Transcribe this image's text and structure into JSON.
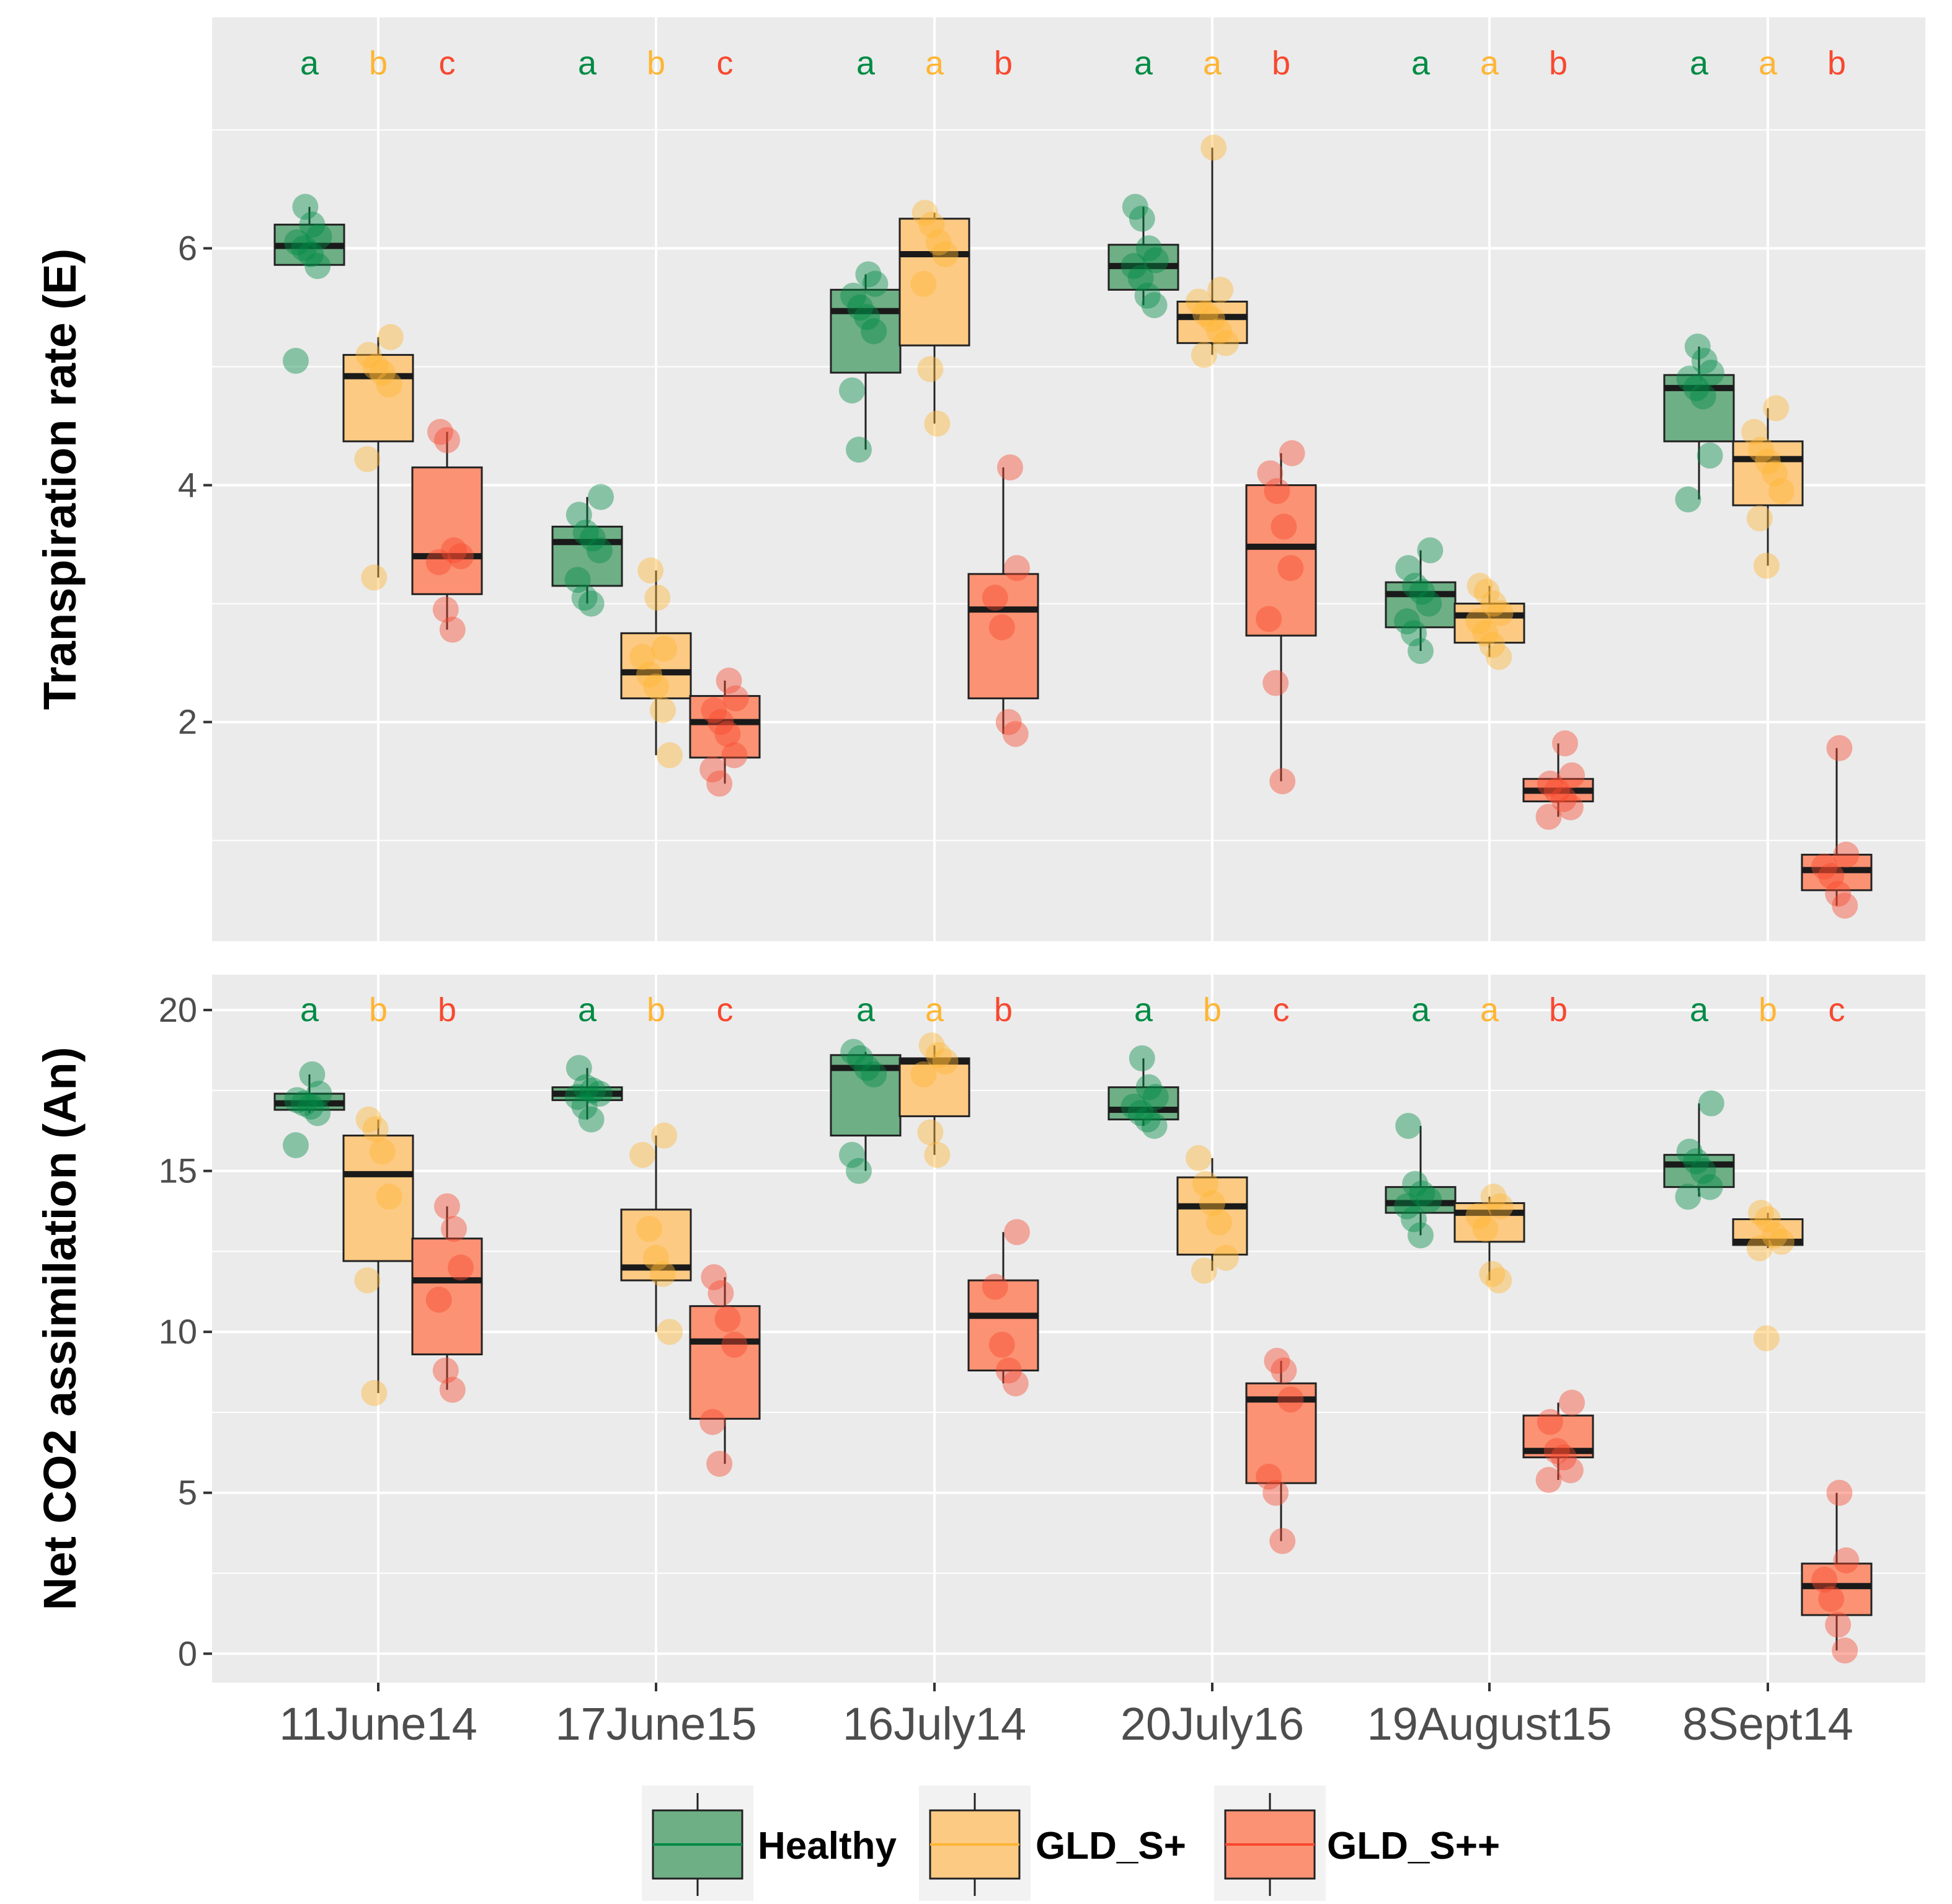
{
  "colors": {
    "panel_bg": "#EBEBEB",
    "grid": "#FFFFFF",
    "tick_text": "#4D4D4D",
    "healthy": "#008B45",
    "gld_s_plus": "#FFB533",
    "gld_s_plusplus": "#F8482E",
    "healthy_fill": "#6EAF85",
    "gld_s_plus_fill": "#FDCA84",
    "gld_s_plusplus_fill": "#FB9273"
  },
  "legend": {
    "items": [
      {
        "key": "healthy",
        "label": "Healthy"
      },
      {
        "key": "gld_s_plus",
        "label": "GLD_S+"
      },
      {
        "key": "gld_s_plusplus",
        "label": "GLD_S++"
      }
    ]
  },
  "chart_data": [
    {
      "type": "box",
      "panel": "top",
      "ylabel": "Transpiration rate (E)",
      "ylim": [
        0.15,
        7.95
      ],
      "yticks": [
        2,
        4,
        6
      ],
      "yminor": [
        1,
        3,
        5,
        7
      ],
      "categories": [
        "11June14",
        "17June15",
        "16July14",
        "20July16",
        "19August15",
        "8Sept14"
      ],
      "letters": [
        [
          "a",
          "b",
          "c"
        ],
        [
          "a",
          "b",
          "c"
        ],
        [
          "a",
          "a",
          "b"
        ],
        [
          "a",
          "a",
          "b"
        ],
        [
          "a",
          "a",
          "b"
        ],
        [
          "a",
          "a",
          "b"
        ]
      ],
      "series": [
        {
          "name": "Healthy",
          "boxes": [
            {
              "min": 5.85,
              "q1": 5.86,
              "median": 6.02,
              "q3": 6.2,
              "max": 6.35,
              "points": [
                5.05,
                5.85,
                5.95,
                6.0,
                6.05,
                6.1,
                6.2,
                6.35
              ]
            },
            {
              "min": 3.0,
              "q1": 3.15,
              "median": 3.52,
              "q3": 3.65,
              "max": 3.9,
              "points": [
                3.0,
                3.05,
                3.2,
                3.45,
                3.55,
                3.6,
                3.75,
                3.9
              ]
            },
            {
              "min": 4.3,
              "q1": 4.95,
              "median": 5.47,
              "q3": 5.65,
              "max": 5.78,
              "points": [
                4.3,
                4.8,
                5.3,
                5.42,
                5.5,
                5.6,
                5.7,
                5.78
              ]
            },
            {
              "min": 5.52,
              "q1": 5.65,
              "median": 5.85,
              "q3": 6.03,
              "max": 6.35,
              "points": [
                5.52,
                5.6,
                5.75,
                5.85,
                5.9,
                6.0,
                6.25,
                6.35
              ]
            },
            {
              "min": 2.6,
              "q1": 2.8,
              "median": 3.08,
              "q3": 3.18,
              "max": 3.45,
              "points": [
                2.6,
                2.75,
                2.85,
                3.0,
                3.1,
                3.15,
                3.3,
                3.45
              ]
            },
            {
              "min": 3.88,
              "q1": 4.37,
              "median": 4.82,
              "q3": 4.93,
              "max": 5.17,
              "points": [
                3.88,
                4.25,
                4.75,
                4.82,
                4.9,
                4.95,
                5.05,
                5.17
              ]
            }
          ]
        },
        {
          "name": "GLD_S+",
          "boxes": [
            {
              "min": 3.22,
              "q1": 4.37,
              "median": 4.92,
              "q3": 5.1,
              "max": 5.25,
              "points": [
                3.22,
                4.22,
                4.85,
                4.95,
                5.0,
                5.1,
                5.25
              ]
            },
            {
              "min": 1.72,
              "q1": 2.2,
              "median": 2.42,
              "q3": 2.75,
              "max": 3.28,
              "points": [
                1.72,
                2.1,
                2.3,
                2.4,
                2.55,
                2.62,
                3.05,
                3.28
              ]
            },
            {
              "min": 4.52,
              "q1": 5.18,
              "median": 5.95,
              "q3": 6.25,
              "max": 6.3,
              "points": [
                4.52,
                4.98,
                5.7,
                5.95,
                6.05,
                6.2,
                6.3
              ]
            },
            {
              "min": 5.1,
              "q1": 5.2,
              "median": 5.42,
              "q3": 5.55,
              "max": 6.85,
              "points": [
                5.1,
                5.2,
                5.3,
                5.4,
                5.45,
                5.55,
                5.65,
                6.85
              ]
            },
            {
              "min": 2.55,
              "q1": 2.67,
              "median": 2.9,
              "q3": 3.0,
              "max": 3.15,
              "points": [
                2.55,
                2.65,
                2.75,
                2.85,
                2.92,
                3.0,
                3.1,
                3.15
              ]
            },
            {
              "min": 3.32,
              "q1": 3.83,
              "median": 4.22,
              "q3": 4.37,
              "max": 4.65,
              "points": [
                3.32,
                3.72,
                3.95,
                4.1,
                4.2,
                4.3,
                4.45,
                4.65
              ]
            }
          ]
        },
        {
          "name": "GLD_S++",
          "boxes": [
            {
              "min": 2.78,
              "q1": 3.08,
              "median": 3.4,
              "q3": 4.15,
              "max": 4.45,
              "points": [
                2.78,
                2.95,
                3.35,
                3.4,
                3.45,
                4.38,
                4.45
              ]
            },
            {
              "min": 1.48,
              "q1": 1.7,
              "median": 2.0,
              "q3": 2.22,
              "max": 2.35,
              "points": [
                1.48,
                1.6,
                1.72,
                1.9,
                2.0,
                2.1,
                2.2,
                2.35
              ]
            },
            {
              "min": 1.9,
              "q1": 2.2,
              "median": 2.95,
              "q3": 3.25,
              "max": 4.15,
              "points": [
                1.9,
                2.0,
                2.8,
                3.05,
                3.3,
                4.15
              ]
            },
            {
              "min": 1.5,
              "q1": 2.73,
              "median": 3.48,
              "q3": 4.0,
              "max": 4.27,
              "points": [
                1.5,
                2.33,
                2.87,
                3.3,
                3.65,
                3.95,
                4.1,
                4.27
              ]
            },
            {
              "min": 1.2,
              "q1": 1.33,
              "median": 1.42,
              "q3": 1.52,
              "max": 1.82,
              "points": [
                1.2,
                1.28,
                1.35,
                1.42,
                1.48,
                1.55,
                1.82
              ]
            },
            {
              "min": 0.45,
              "q1": 0.58,
              "median": 0.75,
              "q3": 0.88,
              "max": 1.78,
              "points": [
                0.45,
                0.55,
                0.7,
                0.78,
                0.88,
                1.78
              ]
            }
          ]
        }
      ]
    },
    {
      "type": "box",
      "panel": "bottom",
      "ylabel": "Net CO2 assimilation (An)",
      "xlabel": "",
      "ylim": [
        -0.9,
        21.1
      ],
      "yticks": [
        0,
        5,
        10,
        15,
        20
      ],
      "yminor": [
        2.5,
        7.5,
        12.5,
        17.5
      ],
      "categories": [
        "11June14",
        "17June15",
        "16July14",
        "20July16",
        "19August15",
        "8Sept14"
      ],
      "letters": [
        [
          "a",
          "b",
          "b"
        ],
        [
          "a",
          "b",
          "c"
        ],
        [
          "a",
          "a",
          "b"
        ],
        [
          "a",
          "b",
          "c"
        ],
        [
          "a",
          "a",
          "b"
        ],
        [
          "a",
          "b",
          "c"
        ]
      ],
      "series": [
        {
          "name": "Healthy",
          "boxes": [
            {
              "min": 16.8,
              "q1": 16.9,
              "median": 17.1,
              "q3": 17.4,
              "max": 18.0,
              "points": [
                15.8,
                16.8,
                17.0,
                17.1,
                17.2,
                17.4,
                18.0
              ]
            },
            {
              "min": 16.6,
              "q1": 17.2,
              "median": 17.4,
              "q3": 17.6,
              "max": 18.2,
              "points": [
                16.6,
                17.0,
                17.3,
                17.4,
                17.5,
                17.6,
                18.2
              ]
            },
            {
              "min": 15.0,
              "q1": 16.1,
              "median": 18.2,
              "q3": 18.6,
              "max": 18.7,
              "points": [
                15.0,
                15.5,
                18.0,
                18.2,
                18.5,
                18.7
              ]
            },
            {
              "min": 16.4,
              "q1": 16.6,
              "median": 16.9,
              "q3": 17.6,
              "max": 18.5,
              "points": [
                16.4,
                16.6,
                16.8,
                17.0,
                17.3,
                17.6,
                18.5
              ]
            },
            {
              "min": 13.0,
              "q1": 13.7,
              "median": 14.0,
              "q3": 14.5,
              "max": 16.4,
              "points": [
                13.0,
                13.5,
                13.9,
                14.1,
                14.3,
                14.6,
                16.4
              ]
            },
            {
              "min": 14.2,
              "q1": 14.5,
              "median": 15.2,
              "q3": 15.5,
              "max": 17.1,
              "points": [
                14.2,
                14.5,
                15.0,
                15.3,
                15.6,
                17.1
              ]
            }
          ]
        },
        {
          "name": "GLD_S+",
          "boxes": [
            {
              "min": 8.1,
              "q1": 12.2,
              "median": 14.9,
              "q3": 16.1,
              "max": 16.6,
              "points": [
                8.1,
                11.6,
                14.2,
                15.6,
                16.3,
                16.6
              ]
            },
            {
              "min": 10.0,
              "q1": 11.6,
              "median": 12.0,
              "q3": 13.8,
              "max": 16.1,
              "points": [
                10.0,
                11.8,
                12.3,
                13.2,
                15.5,
                16.1
              ]
            },
            {
              "min": 15.5,
              "q1": 16.7,
              "median": 18.4,
              "q3": 18.5,
              "max": 18.9,
              "points": [
                15.5,
                16.2,
                18.0,
                18.4,
                18.6,
                18.9
              ]
            },
            {
              "min": 11.9,
              "q1": 12.4,
              "median": 13.9,
              "q3": 14.8,
              "max": 15.4,
              "points": [
                11.9,
                12.3,
                13.4,
                14.0,
                14.6,
                15.4
              ]
            },
            {
              "min": 11.6,
              "q1": 12.8,
              "median": 13.7,
              "q3": 14.0,
              "max": 14.2,
              "points": [
                11.6,
                11.8,
                13.2,
                13.6,
                13.9,
                14.2
              ]
            },
            {
              "min": 12.6,
              "q1": 12.7,
              "median": 12.8,
              "q3": 13.5,
              "max": 13.7,
              "points": [
                9.8,
                12.6,
                12.8,
                13.0,
                13.5,
                13.7
              ]
            }
          ]
        },
        {
          "name": "GLD_S++",
          "boxes": [
            {
              "min": 8.2,
              "q1": 9.3,
              "median": 11.6,
              "q3": 12.9,
              "max": 13.9,
              "points": [
                8.2,
                8.8,
                11.0,
                12.0,
                13.2,
                13.9
              ]
            },
            {
              "min": 5.9,
              "q1": 7.3,
              "median": 9.7,
              "q3": 10.8,
              "max": 11.7,
              "points": [
                5.9,
                7.2,
                9.6,
                10.4,
                11.2,
                11.7
              ]
            },
            {
              "min": 8.4,
              "q1": 8.8,
              "median": 10.5,
              "q3": 11.6,
              "max": 13.1,
              "points": [
                8.4,
                8.8,
                9.6,
                11.4,
                13.1
              ]
            },
            {
              "min": 3.5,
              "q1": 5.3,
              "median": 7.9,
              "q3": 8.4,
              "max": 9.1,
              "points": [
                3.5,
                5.0,
                5.5,
                7.9,
                8.8,
                9.1
              ]
            },
            {
              "min": 5.4,
              "q1": 6.1,
              "median": 6.3,
              "q3": 7.4,
              "max": 7.8,
              "points": [
                5.4,
                5.7,
                6.1,
                6.3,
                7.2,
                7.8
              ]
            },
            {
              "min": 0.1,
              "q1": 1.2,
              "median": 2.1,
              "q3": 2.8,
              "max": 5.0,
              "points": [
                0.1,
                0.9,
                1.7,
                2.3,
                2.9,
                5.0
              ]
            }
          ]
        }
      ]
    }
  ]
}
